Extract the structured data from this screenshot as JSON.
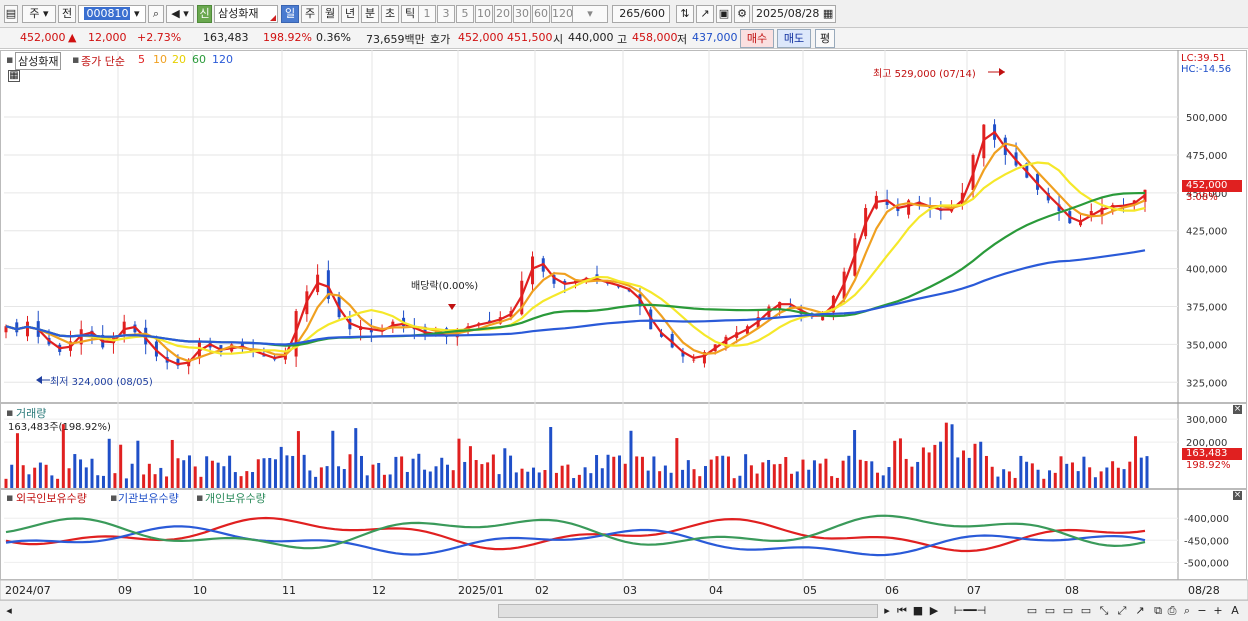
{
  "toolbar": {
    "menu1": "주",
    "menu2": "전",
    "code": "000810",
    "shin": "신",
    "name": "삼성화재",
    "periods": [
      "일",
      "주",
      "월",
      "년",
      "분",
      "초",
      "틱"
    ],
    "period_selected": "일",
    "intervals": [
      "1",
      "3",
      "5",
      "10",
      "20",
      "30",
      "60",
      "120"
    ],
    "count": "265",
    "count_total": "/600",
    "date": "2025/08/28"
  },
  "quote": {
    "price": "452,000",
    "arrow": "▲",
    "change": "12,000",
    "change_pct": "+2.73%",
    "volume": "163,483",
    "vol_ratio": "198.92%",
    "turnover": "0.36%",
    "amount": "73,659백만",
    "ask_label": "호가",
    "ask": "452,000",
    "bid": "451,500",
    "open_label": "시",
    "open": "440,000",
    "high_label": "고",
    "high": "458,000",
    "low_label": "저",
    "low": "437,000",
    "buy": "매수",
    "sell": "매도",
    "eval": "평"
  },
  "price_panel": {
    "name": "삼성화재",
    "ma_title": "종가 단순",
    "ma_labels": [
      "5",
      "10",
      "20",
      "60",
      "120"
    ],
    "lc": "LC:39.51",
    "hc": "HC:-14.56",
    "annot_high": "최고 529,000 (07/14)",
    "annot_low": "최저 324,000 (08/05)",
    "annot_div": "배당락(0.00%)",
    "last_label": "452,000",
    "last_pct": "3.08%"
  },
  "volume_panel": {
    "title": "거래량",
    "value": "163,483주(198.92%)",
    "last_label": "163,483",
    "last_pct": "198.92%"
  },
  "holdings_panel": {
    "labels": [
      "외국인보유수량",
      "기관보유수량",
      "개인보유수량"
    ]
  },
  "x_labels": [
    "2024/07",
    "09",
    "10",
    "11",
    "12",
    "2025/01",
    "02",
    "03",
    "04",
    "05",
    "06",
    "07",
    "08",
    "08/28"
  ],
  "colors": {
    "up": "#e02020",
    "down": "#1f4fc8",
    "ma5": "#e02020",
    "ma10": "#f0a020",
    "ma20": "#f5e82a",
    "ma60": "#2a9a3a",
    "ma120": "#2a5ad8",
    "foreign": "#e02020",
    "inst": "#2a5ad8",
    "indiv": "#3a9a5a"
  },
  "chart_data": {
    "type": "candlestick",
    "title": "삼성화재",
    "y_ticks": [
      325000,
      350000,
      375000,
      400000,
      425000,
      450000,
      475000,
      500000
    ],
    "ylim": [
      312000,
      535000
    ],
    "high": {
      "value": 529000,
      "date": "07/14"
    },
    "low": {
      "value": 324000,
      "date": "08/05"
    },
    "last": {
      "close": 452000,
      "open": 440000,
      "high": 458000,
      "low": 437000
    },
    "close_path": [
      362000,
      358000,
      365000,
      355000,
      350000,
      345000,
      352000,
      360000,
      356000,
      348000,
      355000,
      365000,
      358000,
      350000,
      342000,
      338000,
      336000,
      340000,
      352000,
      348000,
      345000,
      350000,
      347000,
      345000,
      342000,
      340000,
      345000,
      372000,
      385000,
      396000,
      380000,
      368000,
      360000,
      362000,
      358000,
      360000,
      365000,
      362000,
      360000,
      356000,
      358000,
      355000,
      360000,
      362000,
      364000,
      365000,
      368000,
      372000,
      392000,
      408000,
      398000,
      390000,
      390000,
      392000,
      394000,
      392000,
      390000,
      388000,
      385000,
      375000,
      360000,
      355000,
      348000,
      342000,
      340000,
      345000,
      350000,
      355000,
      358000,
      362000,
      368000,
      375000,
      378000,
      375000,
      370000,
      368000,
      370000,
      382000,
      398000,
      420000,
      440000,
      448000,
      442000,
      438000,
      445000,
      442000,
      440000,
      438000,
      440000,
      450000,
      475000,
      495000,
      485000,
      475000,
      468000,
      460000,
      452000,
      445000,
      438000,
      430000,
      432000,
      438000,
      440000,
      442000,
      441000,
      445000,
      452000
    ],
    "volume_ticks": [
      200000,
      300000
    ],
    "holdings_ticks": [
      -400000,
      -450000,
      -500000
    ]
  }
}
